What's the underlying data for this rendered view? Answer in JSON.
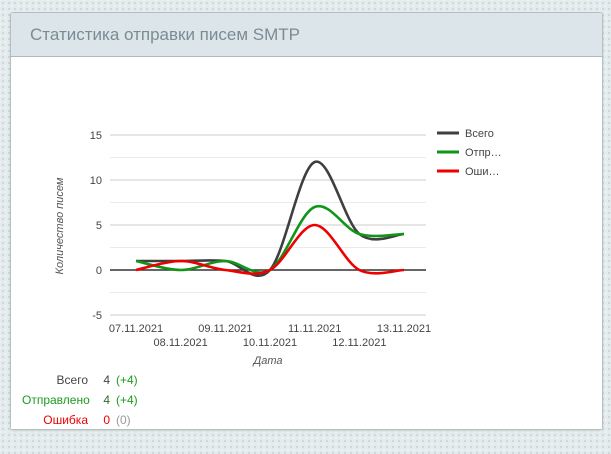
{
  "widget": {
    "title": "Статистика отправки писем SMTP"
  },
  "chart_data": {
    "type": "line",
    "smooth": true,
    "grid": true,
    "legend_position": "right",
    "x_categories": [
      "07.11.2021",
      "08.11.2021",
      "09.11.2021",
      "10.11.2021",
      "11.11.2021",
      "12.11.2021",
      "13.11.2021"
    ],
    "xlabel": "Дата",
    "ylabel": "Количество писем",
    "ylim": [
      -5,
      15
    ],
    "yticks": [
      -5,
      0,
      5,
      10,
      15
    ],
    "minor_gridline_step": 2.5,
    "series": [
      {
        "key": "total",
        "name": "Всего",
        "legend_label": "Всего",
        "color": "#3f3f3f",
        "values": [
          1,
          1,
          1,
          0,
          12,
          4,
          4
        ]
      },
      {
        "key": "sent",
        "name": "Отправлено",
        "legend_label": "Отпр…",
        "color": "#0f9618",
        "values": [
          1,
          0,
          1,
          0,
          7,
          4,
          4
        ]
      },
      {
        "key": "error",
        "name": "Ошибка",
        "legend_label": "Оши…",
        "color": "#ee0000",
        "values": [
          0,
          1,
          0,
          0,
          5,
          0,
          0
        ]
      }
    ]
  },
  "summary": {
    "rows": [
      {
        "key": "total",
        "label": "Всего",
        "value": "4",
        "delta": "(+4)",
        "label_color": "#444444",
        "value_color": "#444444",
        "delta_color": "#1d9b1d"
      },
      {
        "key": "sent",
        "label": "Отправлено",
        "value": "4",
        "delta": "(+4)",
        "label_color": "#1d9b1d",
        "value_color": "#2f6b2f",
        "delta_color": "#1d9b1d"
      },
      {
        "key": "error",
        "label": "Ошибка",
        "value": "0",
        "delta": "(0)",
        "label_color": "#ee0000",
        "value_color": "#ee0000",
        "delta_color": "#999999"
      }
    ]
  }
}
